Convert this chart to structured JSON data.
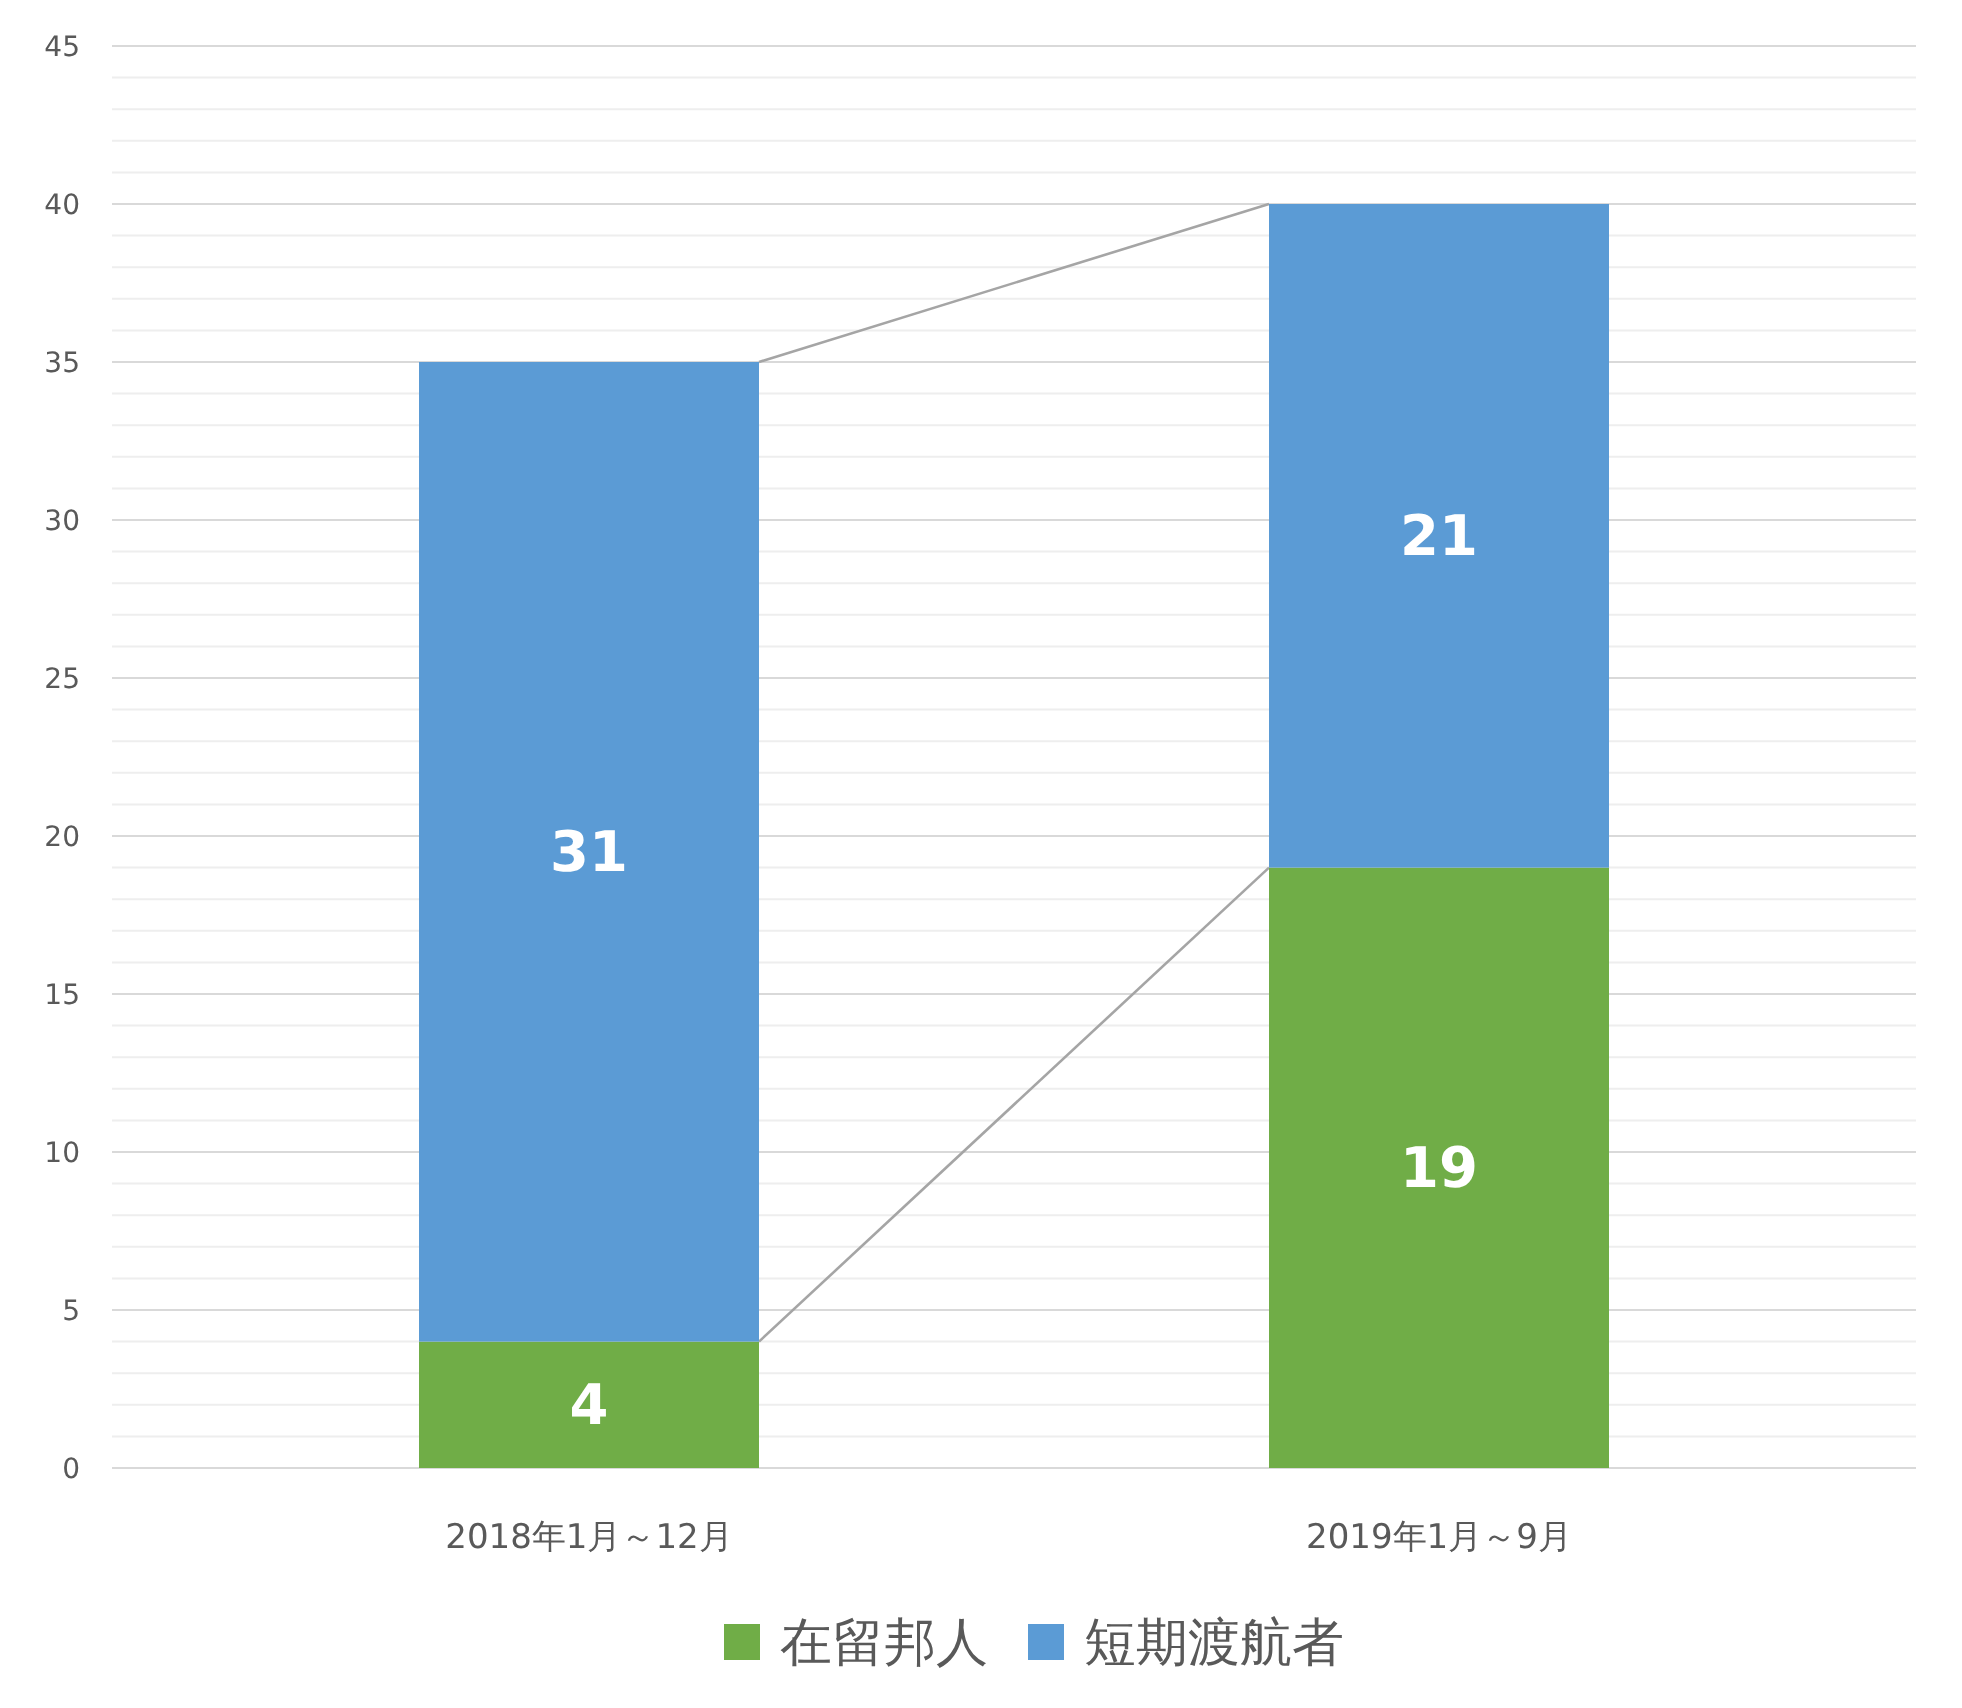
{
  "chart_data": {
    "type": "bar",
    "stacked": true,
    "categories": [
      "2018年1月～12月",
      "2019年1月～9月"
    ],
    "series": [
      {
        "name": "在留邦人",
        "color": "#70ad47",
        "values": [
          4,
          19
        ]
      },
      {
        "name": "短期渡航者",
        "color": "#5b9bd5",
        "values": [
          31,
          21
        ]
      }
    ],
    "ylim": [
      0,
      45
    ],
    "yticks": [
      0,
      5,
      10,
      15,
      20,
      25,
      30,
      35,
      40,
      45
    ],
    "grid": true,
    "legend": "bottom",
    "data_labels": true
  }
}
